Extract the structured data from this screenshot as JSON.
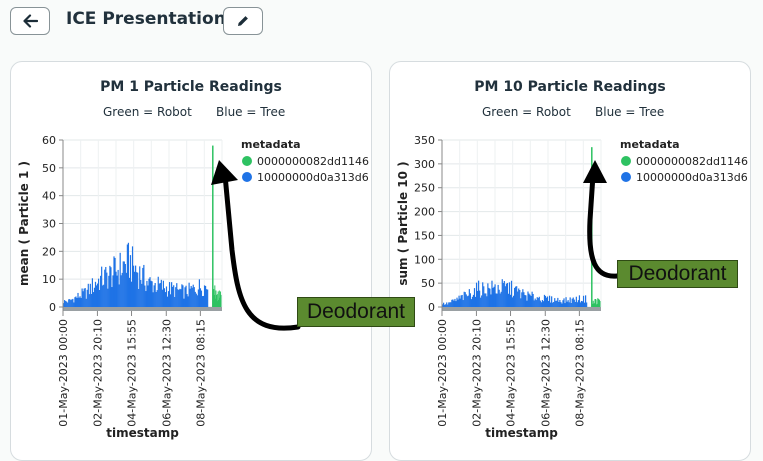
{
  "header": {
    "back_icon": "arrow-left-icon",
    "title": "ICE Presentation",
    "edit_icon": "pencil-icon"
  },
  "colors": {
    "robot": "#2ec262",
    "tree": "#1f73e6",
    "callout": "#5b8a2f"
  },
  "charts": [
    {
      "title": "PM 1 Particle Readings",
      "legend_green": "Green = Robot",
      "legend_blue": "Blue = Tree",
      "legend_title": "metadata",
      "series": [
        "0000000082dd1146",
        "10000000d0a313d6"
      ],
      "ylabel": "mean ( Particle 1 )",
      "xlabel": "timestamp",
      "yticks": [
        "0",
        "10",
        "20",
        "30",
        "40",
        "50",
        "60"
      ],
      "xticks": [
        "01-May-2023 00:00",
        "02-May-2023 20:10",
        "04-May-2023 15:55",
        "06-May-2023 12:30",
        "08-May-2023 08:15"
      ],
      "callout": "Deodorant"
    },
    {
      "title": "PM 10 Particle Readings",
      "legend_green": "Green = Robot",
      "legend_blue": "Blue = Tree",
      "legend_title": "metadata",
      "series": [
        "0000000082dd1146",
        "10000000d0a313d6"
      ],
      "ylabel": "sum ( Particle 10 )",
      "xlabel": "timestamp",
      "yticks": [
        "0",
        "50",
        "100",
        "150",
        "200",
        "250",
        "300",
        "350"
      ],
      "xticks": [
        "01-May-2023 00:00",
        "02-May-2023 20:10",
        "04-May-2023 15:55",
        "06-May-2023 12:30",
        "08-May-2023 08:15"
      ],
      "callout": "Deodorant"
    }
  ],
  "chart_data": [
    {
      "type": "bar",
      "title": "PM 1 Particle Readings",
      "xlabel": "timestamp",
      "ylabel": "mean ( Particle 1 )",
      "ylim": [
        0,
        60
      ],
      "xlim": [
        "01-May-2023 00:00",
        "09-May-2023 12:00"
      ],
      "series": [
        {
          "name": "10000000d0a313d6",
          "color": "#1f73e6",
          "peaks": [
            {
              "x": "01-May-2023 06:00",
              "y": 3
            },
            {
              "x": "02-May-2023 06:00",
              "y": 8
            },
            {
              "x": "02-May-2023 20:10",
              "y": 14
            },
            {
              "x": "03-May-2023 12:00",
              "y": 17
            },
            {
              "x": "04-May-2023 12:00",
              "y": 24
            },
            {
              "x": "05-May-2023 12:00",
              "y": 13
            },
            {
              "x": "06-May-2023 12:30",
              "y": 10
            },
            {
              "x": "07-May-2023 12:00",
              "y": 8
            },
            {
              "x": "08-May-2023 08:15",
              "y": 11
            }
          ]
        },
        {
          "name": "0000000082dd1146",
          "color": "#2ec262",
          "peaks": [
            {
              "x": "09-May-2023 00:00",
              "y": 58
            },
            {
              "x": "09-May-2023 06:00",
              "y": 9
            }
          ]
        }
      ]
    },
    {
      "type": "bar",
      "title": "PM 10 Particle Readings",
      "xlabel": "timestamp",
      "ylabel": "sum ( Particle 10 )",
      "ylim": [
        0,
        350
      ],
      "xlim": [
        "01-May-2023 00:00",
        "09-May-2023 12:00"
      ],
      "series": [
        {
          "name": "10000000d0a313d6",
          "color": "#1f73e6",
          "peaks": [
            {
              "x": "01-May-2023 06:00",
              "y": 10
            },
            {
              "x": "02-May-2023 06:00",
              "y": 35
            },
            {
              "x": "02-May-2023 20:10",
              "y": 55
            },
            {
              "x": "04-May-2023 12:00",
              "y": 60
            },
            {
              "x": "05-May-2023 12:00",
              "y": 35
            },
            {
              "x": "06-May-2023 12:30",
              "y": 25
            },
            {
              "x": "07-May-2023 12:00",
              "y": 20
            },
            {
              "x": "08-May-2023 08:15",
              "y": 25
            }
          ]
        },
        {
          "name": "0000000082dd1146",
          "color": "#2ec262",
          "peaks": [
            {
              "x": "09-May-2023 00:00",
              "y": 335
            },
            {
              "x": "09-May-2023 06:00",
              "y": 20
            }
          ]
        }
      ]
    }
  ]
}
